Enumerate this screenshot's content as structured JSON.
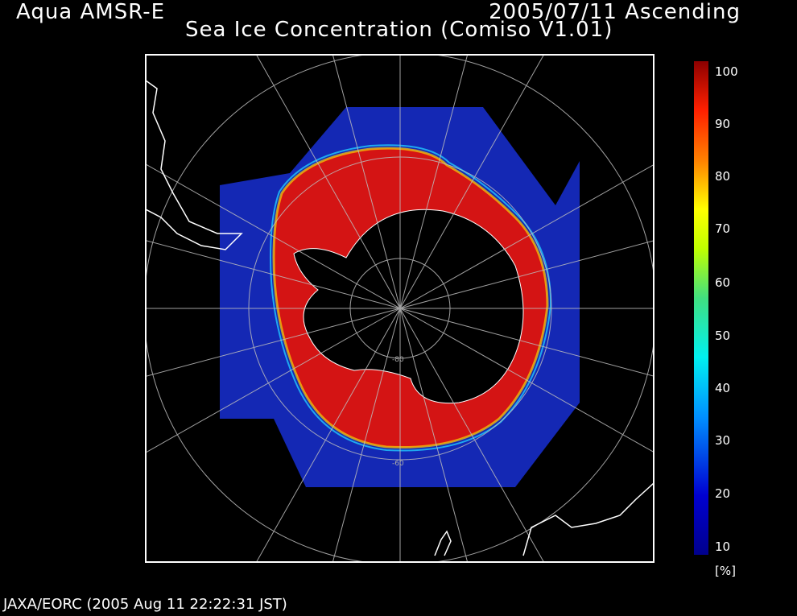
{
  "header": {
    "satellite": "Aqua AMSR-E",
    "date_pass": "2005/07/11 Ascending",
    "title": "Sea Ice Concentration (Comiso V1.01)"
  },
  "map": {
    "projection": "south polar stereographic",
    "latitude_labels": [
      "-80",
      "-60"
    ],
    "colors": {
      "ice_core": "#d41414",
      "open_ocean": "#1428b4",
      "land": "#000000",
      "coast": "#ffffff",
      "grid": "#bdbdbd"
    }
  },
  "colorbar": {
    "ticks": [
      "100",
      "90",
      "80",
      "70",
      "60",
      "50",
      "40",
      "30",
      "20",
      "10"
    ],
    "unit": "[%]",
    "min": 10,
    "max": 100
  },
  "footer": {
    "credit": "JAXA/EORC (2005 Aug 11 22:22:31 JST)"
  }
}
